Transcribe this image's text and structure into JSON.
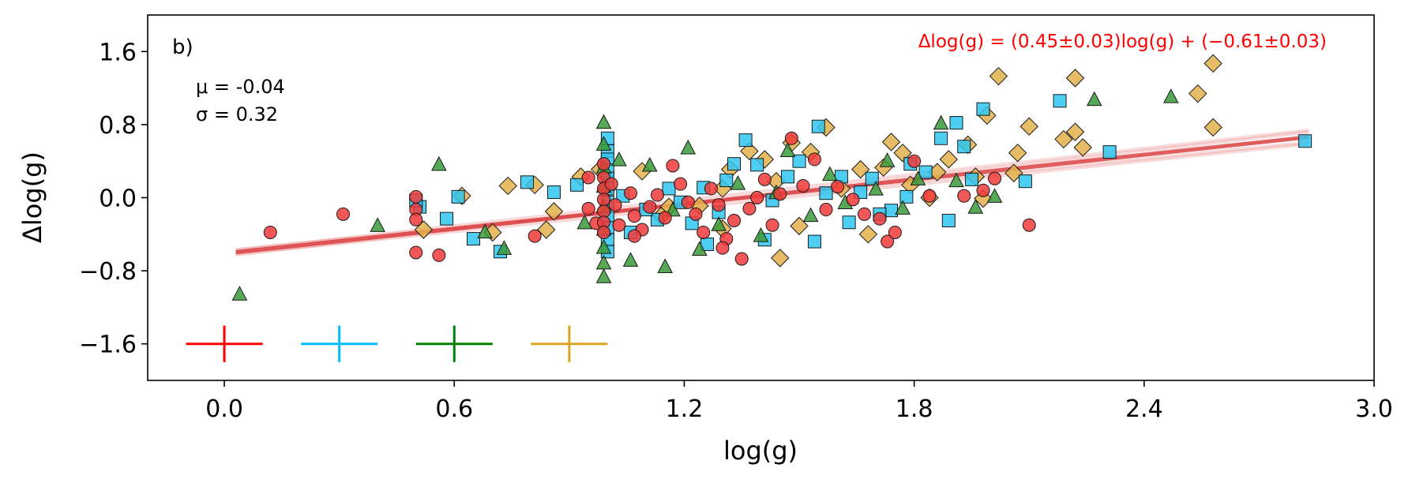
{
  "chart_data": {
    "type": "scatter",
    "panel_label": "b)",
    "xlabel": "log(g)",
    "ylabel": "Δlog(g)",
    "xlim": [
      -0.2,
      3.0
    ],
    "ylim": [
      -2.0,
      2.0
    ],
    "xticks": [
      0.0,
      0.6,
      1.2,
      1.8,
      2.4,
      3.0
    ],
    "xtick_labels": [
      "0.0",
      "0.6",
      "1.2",
      "1.8",
      "2.4",
      "3.0"
    ],
    "yticks": [
      -1.6,
      -0.8,
      0.0,
      0.8,
      1.6
    ],
    "ytick_labels": [
      "−1.6",
      "−0.8",
      "0.0",
      "0.8",
      "1.6"
    ],
    "stats": {
      "mu_text": "μ = -0.04",
      "sigma_text": "σ = 0.32"
    },
    "fit": {
      "label": "Δlog(g) = (0.45±0.03)log(g) + (−0.61±0.03)",
      "slope": 0.45,
      "intercept": -0.61,
      "x_range": [
        0.03,
        2.83
      ],
      "color": "#d62728"
    },
    "error_bars": [
      {
        "series": "red",
        "x": 0.0,
        "y": -1.6,
        "xerr": 0.1,
        "yerr": 0.2,
        "color": "#ff0000"
      },
      {
        "series": "cyan",
        "x": 0.3,
        "y": -1.6,
        "xerr": 0.1,
        "yerr": 0.2,
        "color": "#00bfff"
      },
      {
        "series": "green",
        "x": 0.6,
        "y": -1.6,
        "xerr": 0.1,
        "yerr": 0.2,
        "color": "#008000"
      },
      {
        "series": "gold",
        "x": 0.9,
        "y": -1.6,
        "xerr": 0.1,
        "yerr": 0.2,
        "color": "#daa520"
      }
    ],
    "series": [
      {
        "name": "gold",
        "marker": "diamond",
        "color": "#e3b04b",
        "points": [
          [
            2.58,
            1.47
          ],
          [
            2.54,
            1.14
          ],
          [
            2.58,
            0.77
          ],
          [
            2.02,
            1.33
          ],
          [
            2.22,
            1.31
          ],
          [
            2.1,
            0.78
          ],
          [
            2.22,
            0.72
          ],
          [
            2.19,
            0.64
          ],
          [
            2.24,
            0.55
          ],
          [
            1.99,
            0.9
          ],
          [
            2.07,
            0.49
          ],
          [
            2.06,
            0.27
          ],
          [
            1.94,
            0.58
          ],
          [
            1.98,
            -0.01
          ],
          [
            1.89,
            0.42
          ],
          [
            1.86,
            0.28
          ],
          [
            1.74,
            0.61
          ],
          [
            1.77,
            0.49
          ],
          [
            1.72,
            0.33
          ],
          [
            1.66,
            0.31
          ],
          [
            1.57,
            0.77
          ],
          [
            1.53,
            0.5
          ],
          [
            1.5,
            -0.31
          ],
          [
            1.48,
            0.6
          ],
          [
            1.45,
            -0.66
          ],
          [
            1.41,
            0.42
          ],
          [
            1.37,
            0.51
          ],
          [
            1.32,
            0.31
          ],
          [
            1.3,
            0.1
          ],
          [
            1.24,
            -0.09
          ],
          [
            1.16,
            -0.1
          ],
          [
            1.09,
            0.29
          ],
          [
            0.98,
            0.31
          ],
          [
            0.93,
            0.23
          ],
          [
            0.86,
            -0.15
          ],
          [
            0.81,
            0.14
          ],
          [
            0.74,
            0.13
          ],
          [
            0.7,
            -0.38
          ],
          [
            0.62,
            0.02
          ],
          [
            0.52,
            -0.35
          ],
          [
            0.84,
            -0.35
          ],
          [
            1.14,
            -0.2
          ],
          [
            1.44,
            0.18
          ],
          [
            1.61,
            0.1
          ],
          [
            1.68,
            -0.4
          ],
          [
            1.79,
            0.14
          ],
          [
            1.84,
            0.0
          ],
          [
            1.96,
            0.23
          ],
          [
            1.3,
            -0.34
          ],
          [
            1.0,
            0.1
          ]
        ]
      },
      {
        "name": "cyan",
        "marker": "square",
        "color": "#2ec5f0",
        "points": [
          [
            2.82,
            0.62
          ],
          [
            2.31,
            0.5
          ],
          [
            2.18,
            1.06
          ],
          [
            2.09,
            0.18
          ],
          [
            1.98,
            0.97
          ],
          [
            1.93,
            0.56
          ],
          [
            1.91,
            0.82
          ],
          [
            1.87,
            0.65
          ],
          [
            1.83,
            0.28
          ],
          [
            1.79,
            0.37
          ],
          [
            1.78,
            0.01
          ],
          [
            1.74,
            -0.14
          ],
          [
            1.69,
            0.21
          ],
          [
            1.66,
            0.06
          ],
          [
            1.61,
            0.23
          ],
          [
            1.57,
            0.05
          ],
          [
            1.55,
            0.78
          ],
          [
            1.5,
            0.4
          ],
          [
            1.47,
            0.23
          ],
          [
            1.43,
            -0.03
          ],
          [
            1.39,
            0.36
          ],
          [
            1.36,
            0.63
          ],
          [
            1.33,
            0.37
          ],
          [
            1.31,
            0.19
          ],
          [
            1.29,
            -0.16
          ],
          [
            1.25,
            0.11
          ],
          [
            1.22,
            -0.28
          ],
          [
            1.19,
            -0.05
          ],
          [
            1.16,
            0.1
          ],
          [
            1.13,
            -0.24
          ],
          [
            1.1,
            -0.13
          ],
          [
            1.06,
            -0.38
          ],
          [
            1.04,
            0.02
          ],
          [
            1.0,
            0.65
          ],
          [
            1.0,
            0.51
          ],
          [
            1.0,
            0.42
          ],
          [
            1.0,
            0.3
          ],
          [
            1.0,
            0.21
          ],
          [
            1.0,
            0.1
          ],
          [
            1.0,
            -0.05
          ],
          [
            1.0,
            -0.2
          ],
          [
            1.0,
            -0.33
          ],
          [
            1.0,
            -0.46
          ],
          [
            1.0,
            -0.59
          ],
          [
            0.92,
            0.14
          ],
          [
            0.86,
            0.06
          ],
          [
            0.79,
            0.17
          ],
          [
            0.72,
            -0.59
          ],
          [
            0.65,
            -0.45
          ],
          [
            0.61,
            0.01
          ],
          [
            0.58,
            -0.23
          ],
          [
            0.51,
            -0.1
          ],
          [
            0.5,
            -0.03
          ],
          [
            1.41,
            -0.46
          ],
          [
            1.54,
            -0.48
          ],
          [
            1.63,
            -0.27
          ],
          [
            1.71,
            -0.18
          ],
          [
            1.89,
            -0.25
          ],
          [
            1.95,
            0.2
          ],
          [
            1.26,
            -0.51
          ]
        ]
      },
      {
        "name": "green",
        "marker": "triangle",
        "color": "#3a9a3a",
        "points": [
          [
            0.04,
            -1.06
          ],
          [
            0.4,
            -0.31
          ],
          [
            0.56,
            0.36
          ],
          [
            0.68,
            -0.38
          ],
          [
            0.73,
            -0.56
          ],
          [
            0.94,
            -0.28
          ],
          [
            0.99,
            0.82
          ],
          [
            0.99,
            0.58
          ],
          [
            0.99,
            0.33
          ],
          [
            0.99,
            0.12
          ],
          [
            0.99,
            -0.1
          ],
          [
            0.99,
            -0.35
          ],
          [
            0.99,
            -0.55
          ],
          [
            0.99,
            -0.72
          ],
          [
            0.99,
            -0.87
          ],
          [
            1.03,
            0.41
          ],
          [
            1.06,
            -0.69
          ],
          [
            1.11,
            0.35
          ],
          [
            1.15,
            -0.76
          ],
          [
            1.21,
            0.54
          ],
          [
            1.24,
            -0.57
          ],
          [
            1.29,
            -0.3
          ],
          [
            1.34,
            0.15
          ],
          [
            1.4,
            -0.42
          ],
          [
            1.47,
            0.51
          ],
          [
            1.53,
            -0.2
          ],
          [
            1.58,
            0.25
          ],
          [
            1.62,
            -0.06
          ],
          [
            1.7,
            0.09
          ],
          [
            1.73,
            0.4
          ],
          [
            1.77,
            -0.12
          ],
          [
            1.81,
            0.2
          ],
          [
            1.87,
            0.81
          ],
          [
            1.91,
            0.18
          ],
          [
            1.96,
            -0.11
          ],
          [
            2.01,
            0.01
          ],
          [
            2.27,
            1.07
          ],
          [
            2.47,
            1.1
          ],
          [
            1.17,
            -0.14
          ],
          [
            1.44,
            0.05
          ]
        ]
      },
      {
        "name": "red",
        "marker": "circle",
        "color": "#ef3a3a",
        "points": [
          [
            0.12,
            -0.38
          ],
          [
            0.31,
            -0.18
          ],
          [
            0.5,
            -0.6
          ],
          [
            0.56,
            -0.63
          ],
          [
            0.5,
            0.01
          ],
          [
            0.5,
            -0.13
          ],
          [
            0.5,
            -0.24
          ],
          [
            0.81,
            -0.42
          ],
          [
            0.95,
            0.22
          ],
          [
            0.95,
            -0.12
          ],
          [
            0.97,
            -0.28
          ],
          [
            0.99,
            0.37
          ],
          [
            0.99,
            0.22
          ],
          [
            0.99,
            0.1
          ],
          [
            0.99,
            -0.02
          ],
          [
            0.99,
            -0.15
          ],
          [
            0.99,
            -0.27
          ],
          [
            0.99,
            -0.38
          ],
          [
            1.01,
            0.15
          ],
          [
            1.02,
            -0.08
          ],
          [
            1.03,
            -0.3
          ],
          [
            1.06,
            0.05
          ],
          [
            1.07,
            -0.2
          ],
          [
            1.09,
            -0.35
          ],
          [
            1.11,
            -0.1
          ],
          [
            1.13,
            0.03
          ],
          [
            1.15,
            -0.22
          ],
          [
            1.17,
            0.35
          ],
          [
            1.19,
            0.15
          ],
          [
            1.21,
            -0.05
          ],
          [
            1.23,
            -0.18
          ],
          [
            1.25,
            -0.38
          ],
          [
            1.27,
            0.1
          ],
          [
            1.29,
            -0.08
          ],
          [
            1.31,
            -0.45
          ],
          [
            1.33,
            -0.25
          ],
          [
            1.35,
            -0.67
          ],
          [
            1.37,
            -0.12
          ],
          [
            1.39,
            0.0
          ],
          [
            1.41,
            0.2
          ],
          [
            1.43,
            -0.3
          ],
          [
            1.45,
            0.04
          ],
          [
            1.48,
            0.65
          ],
          [
            1.51,
            0.13
          ],
          [
            1.54,
            0.42
          ],
          [
            1.57,
            -0.13
          ],
          [
            1.6,
            0.12
          ],
          [
            1.64,
            -0.02
          ],
          [
            1.67,
            -0.18
          ],
          [
            1.71,
            -0.23
          ],
          [
            1.73,
            -0.48
          ],
          [
            1.75,
            -0.38
          ],
          [
            1.8,
            0.4
          ],
          [
            1.84,
            0.02
          ],
          [
            1.93,
            0.02
          ],
          [
            1.98,
            0.08
          ],
          [
            2.01,
            0.21
          ],
          [
            2.1,
            -0.3
          ],
          [
            1.3,
            -0.55
          ],
          [
            1.07,
            -0.42
          ]
        ]
      }
    ]
  }
}
